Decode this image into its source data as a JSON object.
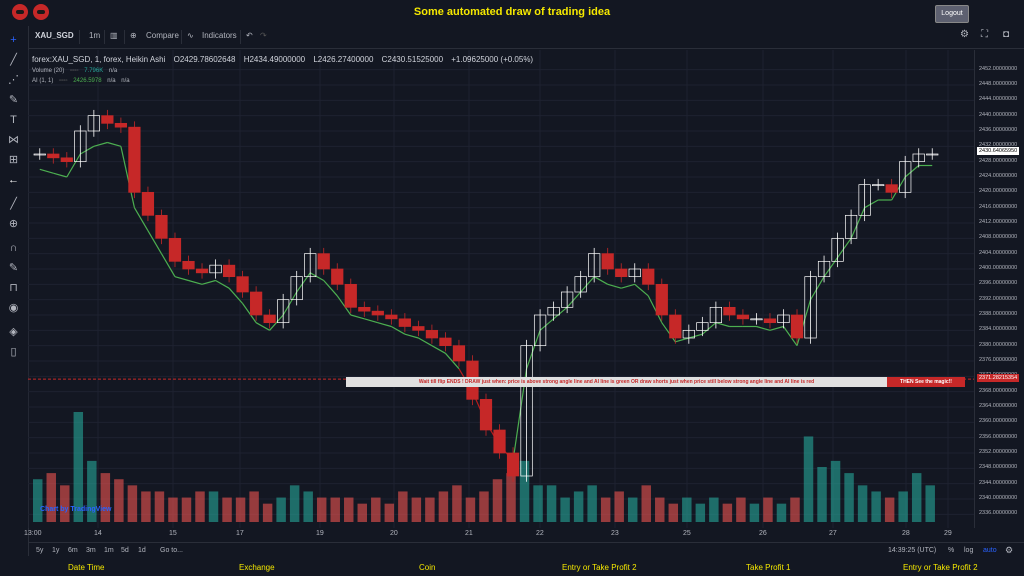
{
  "header": {
    "title": "Some automated draw of trading idea",
    "logout": "Logout"
  },
  "toolbar": {
    "symbol": "XAU_SGD",
    "interval": "1m",
    "compare": "Compare",
    "indicators": "Indicators"
  },
  "legend": {
    "name": "forex:XAU_SGD, 1, forex, Heikin Ashi",
    "open": "O2429.78602648",
    "high": "H2434.49000000",
    "low": "L2426.27400000",
    "close": "C2430.51525000",
    "change": "+1.09625000 (+0.05%)",
    "volume_label": "Volume (20)",
    "volume_value": "7.796K",
    "volume_na": "n/a",
    "ai_label": "AI (1, 1)",
    "ai_value": "2426.5978",
    "ai_na1": "n/a",
    "ai_na2": "n/a"
  },
  "price_axis": [
    "2452.00000000",
    "2448.00000000",
    "2444.00000000",
    "2440.00000000",
    "2436.00000000",
    "2432.00000000",
    "2428.00000000",
    "2424.00000000",
    "2420.00000000",
    "2416.00000000",
    "2412.00000000",
    "2408.00000000",
    "2404.00000000",
    "2400.00000000",
    "2396.00000000",
    "2392.00000000",
    "2388.00000000",
    "2384.00000000",
    "2380.00000000",
    "2376.00000000",
    "2372.00000000",
    "2368.00000000",
    "2364.00000000",
    "2360.00000000",
    "2356.00000000",
    "2352.00000000",
    "2348.00000000",
    "2344.00000000",
    "2340.00000000",
    "2336.00000000"
  ],
  "current_price": "2430.64065950",
  "line_price": "2371.28215354",
  "time_axis": [
    "14",
    "15",
    "17",
    "19",
    "20",
    "21",
    "22",
    "23",
    "25",
    "26",
    "27",
    "28",
    "29",
    "13:00"
  ],
  "banner": {
    "text": "Wait till flip ENDS  !    DRAW just when:  price is above strong angle line and AI line is green        OR        draw shorts just when price still below strong angle line and AI line is red",
    "action": "THEN See the magic!!"
  },
  "watermark": "Chart by TradingView",
  "bottombar": {
    "ranges": [
      "5y",
      "1y",
      "6m",
      "3m",
      "1m",
      "5d",
      "1d"
    ],
    "goto": "Go to...",
    "time": "14:39:25 (UTC)",
    "pct": "%",
    "log": "log",
    "auto": "auto"
  },
  "footer": [
    "Date Time",
    "Exchange",
    "Coin",
    "Entry or Take Profit 2",
    "Take Profit 1",
    "Entry or Take Profit 2"
  ],
  "colors": {
    "bg": "#131722",
    "up": "#ffffff",
    "down": "#c62828",
    "ai_green": "#4caf50",
    "ai_red": "#b71c1c",
    "vol_up": "#26a69a",
    "vol_down": "#ef5350",
    "title": "#f5e800"
  },
  "chart_data": {
    "type": "candlestick",
    "ylim": [
      2334,
      2454
    ],
    "close": [
      2430,
      2429,
      2428,
      2436,
      2440,
      2438,
      2437,
      2420,
      2414,
      2408,
      2402,
      2400,
      2399,
      2401,
      2398,
      2394,
      2388,
      2386,
      2392,
      2398,
      2404,
      2400,
      2396,
      2390,
      2389,
      2388,
      2387,
      2385,
      2384,
      2382,
      2380,
      2376,
      2366,
      2358,
      2352,
      2346,
      2380,
      2388,
      2390,
      2394,
      2398,
      2404,
      2400,
      2398,
      2400,
      2396,
      2388,
      2382,
      2384,
      2386,
      2390,
      2388,
      2387,
      2387,
      2386,
      2388,
      2382,
      2398,
      2402,
      2408,
      2414,
      2422,
      2422,
      2420,
      2428,
      2430,
      2430
    ],
    "volume": [
      7,
      8,
      6,
      18,
      10,
      8,
      7,
      6,
      5,
      5,
      4,
      4,
      5,
      5,
      4,
      4,
      5,
      3,
      4,
      6,
      5,
      4,
      4,
      4,
      3,
      4,
      3,
      5,
      4,
      4,
      5,
      6,
      4,
      5,
      7,
      8,
      10,
      6,
      6,
      4,
      5,
      6,
      4,
      5,
      4,
      6,
      4,
      3,
      4,
      3,
      4,
      3,
      4,
      3,
      4,
      3,
      4,
      14,
      9,
      10,
      8,
      6,
      5,
      4,
      5,
      8,
      6
    ],
    "ai_line": [
      2426,
      2425,
      2424,
      2430,
      2432,
      2433,
      2432,
      2416,
      2410,
      2404,
      2398,
      2397,
      2396,
      2397,
      2395,
      2391,
      2386,
      2384,
      2388,
      2394,
      2399,
      2397,
      2393,
      2388,
      2387,
      2386,
      2385,
      2383,
      2382,
      2380,
      2378,
      2374,
      2368,
      2360,
      2354,
      2350,
      2374,
      2384,
      2387,
      2390,
      2394,
      2398,
      2396,
      2395,
      2396,
      2393,
      2386,
      2381,
      2382,
      2383,
      2386,
      2385,
      2385,
      2385,
      2384,
      2385,
      2380,
      2392,
      2398,
      2403,
      2408,
      2416,
      2418,
      2418,
      2424,
      2427,
      2427
    ],
    "series": [
      {
        "name": "Volume (20)"
      },
      {
        "name": "AI (1, 1)"
      }
    ]
  }
}
